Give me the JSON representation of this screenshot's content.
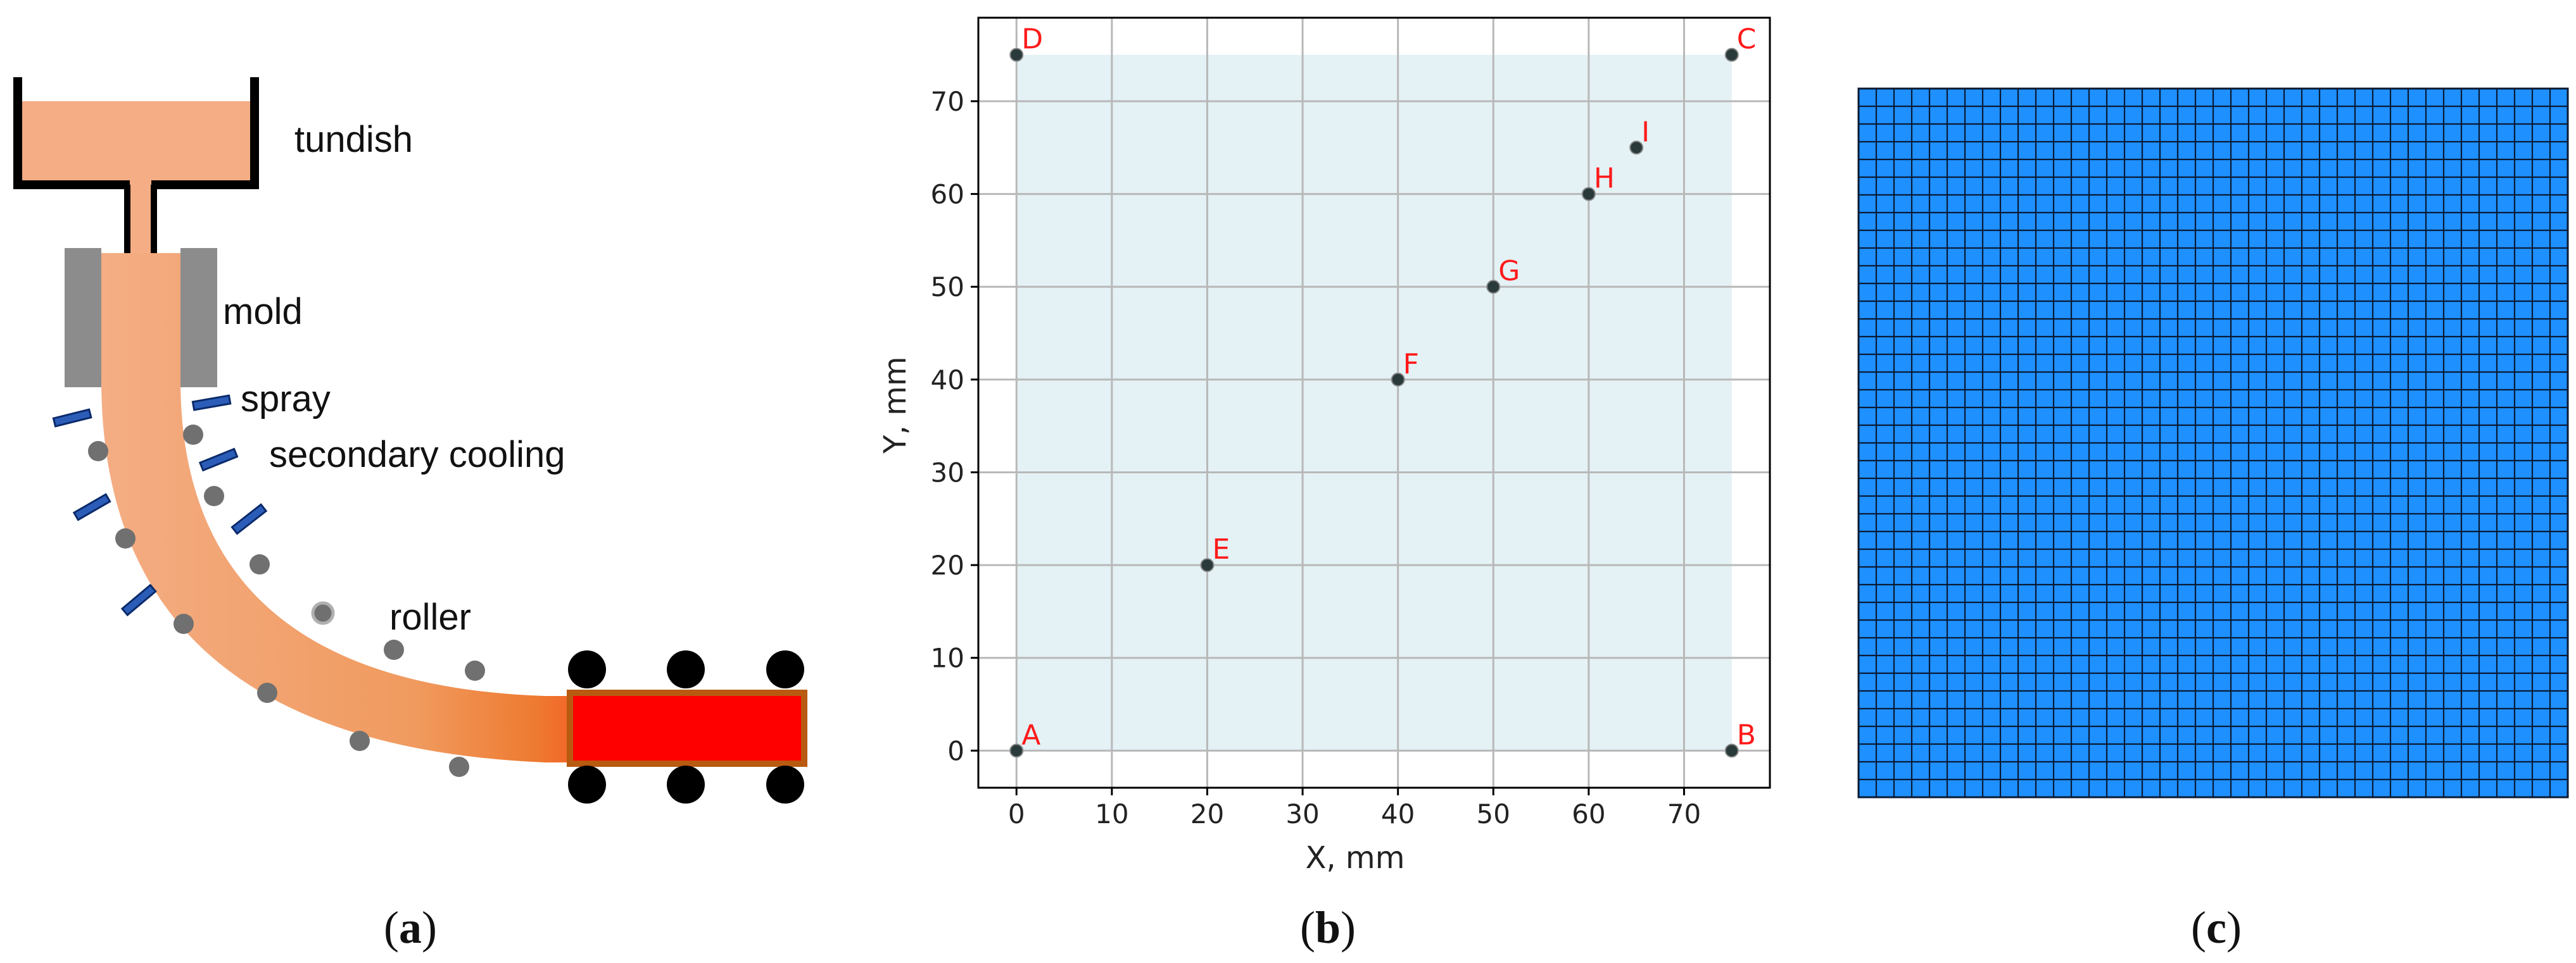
{
  "panel_a": {
    "labels": {
      "tundish": "tundish",
      "mold": "mold",
      "spray": "spray",
      "secondary_cooling": "secondary cooling",
      "roller": "roller"
    },
    "caption": {
      "open": "(",
      "letter": "a",
      "close": ")"
    },
    "colors": {
      "steel_light": "#f4ad84",
      "steel_hot": "#ff0000",
      "mold_gray": "#8c8c8c",
      "spray_blue": "#2b5db8",
      "roller_gray": "#707070",
      "roller_black": "#000000"
    }
  },
  "panel_b": {
    "caption": {
      "open": "(",
      "letter": "b",
      "close": ")"
    },
    "chart_data": {
      "type": "scatter",
      "xlabel": "X, mm",
      "ylabel": "Y, mm",
      "xlim": [
        -4,
        79
      ],
      "ylim": [
        -4,
        79
      ],
      "xticks": [
        0,
        10,
        20,
        30,
        40,
        50,
        60,
        70
      ],
      "yticks": [
        0,
        10,
        20,
        30,
        40,
        50,
        60,
        70
      ],
      "grid": true,
      "domain_region": {
        "x": [
          0,
          75
        ],
        "y": [
          0,
          75
        ],
        "color": "#e4f1f5"
      },
      "points": [
        {
          "name": "A",
          "x": 0,
          "y": 0
        },
        {
          "name": "B",
          "x": 75,
          "y": 0
        },
        {
          "name": "C",
          "x": 75,
          "y": 75
        },
        {
          "name": "D",
          "x": 0,
          "y": 75
        },
        {
          "name": "E",
          "x": 20,
          "y": 20
        },
        {
          "name": "F",
          "x": 40,
          "y": 40
        },
        {
          "name": "G",
          "x": 50,
          "y": 50
        },
        {
          "name": "H",
          "x": 60,
          "y": 60
        },
        {
          "name": "I",
          "x": 65,
          "y": 65
        }
      ]
    }
  },
  "panel_c": {
    "caption": {
      "open": "(",
      "letter": "c",
      "close": ")"
    },
    "mesh": {
      "cells_x": 40,
      "cells_y": 40,
      "fill": "#1e90ff",
      "line": "#0a1a33"
    }
  }
}
